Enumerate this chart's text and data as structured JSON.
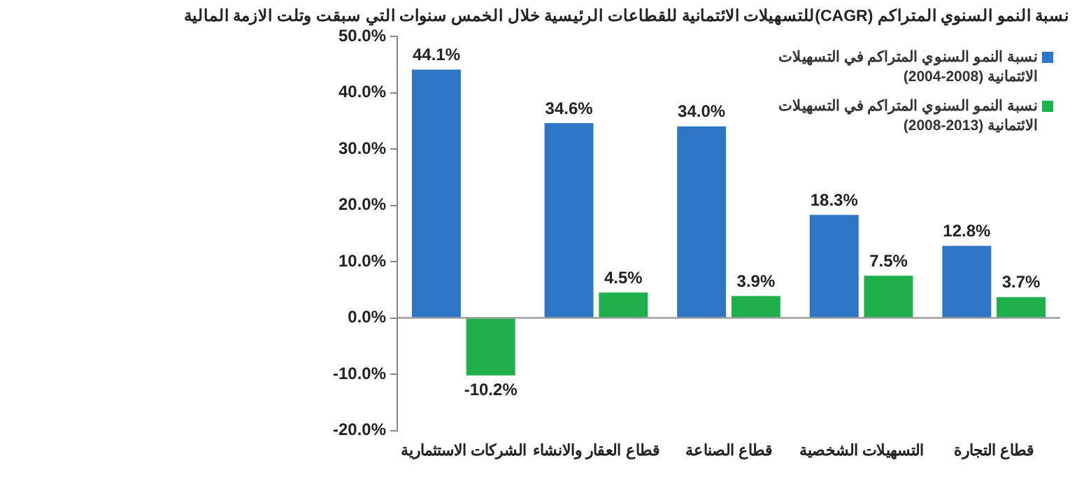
{
  "chart_data": {
    "type": "bar",
    "title": "نسبة النمو السنوي المتراكم (CAGR)للتسهيلات الائتمانية للقطاعات الرئيسية خلال الخمس سنوات التي سبقت وتلت الازمة المالية",
    "categories": [
      "الشركات الاستثمارية",
      "قطاع العقار والانشاء",
      "قطاع الصناعة",
      "التسهيلات الشخصية",
      "قطاع التجارة"
    ],
    "series": [
      {
        "name": "نسبة النمو السنوي المتراكم في التسهيلات الائتمانية (2008-2004)",
        "color": "#2e75c6",
        "values": [
          44.1,
          34.6,
          34.0,
          18.3,
          12.8
        ]
      },
      {
        "name": "نسبة النمو السنوي المتراكم في التسهيلات الائتمانية (2013-2008)",
        "color": "#1fb04c",
        "values": [
          -10.2,
          4.5,
          3.9,
          7.5,
          3.7
        ]
      }
    ],
    "ylim": [
      -20,
      50
    ],
    "yticks": [
      {
        "value": -20,
        "label": "-20.0%"
      },
      {
        "value": -10,
        "label": "-10.0%"
      },
      {
        "value": 0,
        "label": "0.0%"
      },
      {
        "value": 10,
        "label": "10.0%"
      },
      {
        "value": 20,
        "label": "20.0%"
      },
      {
        "value": 30,
        "label": "30.0%"
      },
      {
        "value": 40,
        "label": "40.0%"
      },
      {
        "value": 50,
        "label": "50.0%"
      }
    ],
    "value_labels": [
      [
        "44.1%",
        "34.6%",
        "34.0%",
        "18.3%",
        "12.8%"
      ],
      [
        "-10.2%",
        "4.5%",
        "3.9%",
        "7.5%",
        "3.7%"
      ]
    ],
    "legend": "top right"
  }
}
